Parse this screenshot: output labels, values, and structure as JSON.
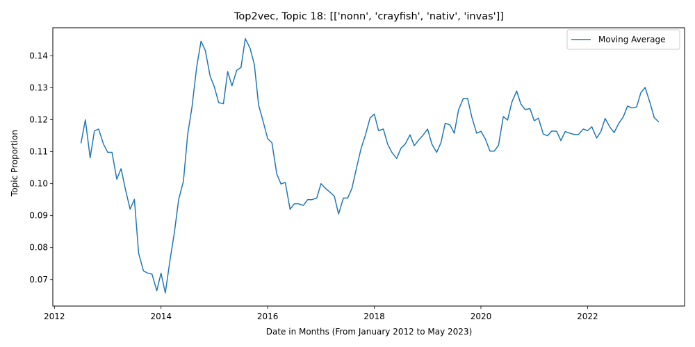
{
  "chart_data": {
    "type": "line",
    "title": "Top2vec, Topic 18: [['nonn', 'crayfish', 'nativ', 'invas']]",
    "xlabel": "Date in Months (From January 2012 to May 2023)",
    "ylabel": "Topic Proportion",
    "xlim": [
      2011.97,
      2023.82
    ],
    "ylim": [
      0.0617,
      0.1488
    ],
    "x_ticks": [
      2012,
      2014,
      2016,
      2018,
      2020,
      2022
    ],
    "y_ticks": [
      0.07,
      0.08,
      0.09,
      0.1,
      0.11,
      0.12,
      0.13,
      0.14
    ],
    "y_tick_labels": [
      "0.07",
      "0.08",
      "0.09",
      "0.10",
      "0.11",
      "0.12",
      "0.13",
      "0.14"
    ],
    "grid": false,
    "legend": {
      "position": "top-right",
      "entries": [
        "Moving Average"
      ]
    },
    "series": [
      {
        "name": "Moving Average",
        "color": "#1f77b4",
        "x": [
          2012.5,
          2012.58,
          2012.67,
          2012.75,
          2012.83,
          2012.92,
          2013.0,
          2013.08,
          2013.17,
          2013.25,
          2013.33,
          2013.42,
          2013.5,
          2013.58,
          2013.67,
          2013.75,
          2013.83,
          2013.92,
          2014.0,
          2014.08,
          2014.17,
          2014.25,
          2014.33,
          2014.42,
          2014.5,
          2014.58,
          2014.67,
          2014.75,
          2014.83,
          2014.92,
          2015.0,
          2015.08,
          2015.17,
          2015.25,
          2015.33,
          2015.42,
          2015.5,
          2015.58,
          2015.67,
          2015.75,
          2015.83,
          2015.92,
          2016.0,
          2016.08,
          2016.17,
          2016.25,
          2016.33,
          2016.42,
          2016.5,
          2016.58,
          2016.67,
          2016.75,
          2016.83,
          2016.92,
          2017.0,
          2017.08,
          2017.17,
          2017.25,
          2017.33,
          2017.42,
          2017.5,
          2017.58,
          2017.67,
          2017.75,
          2017.83,
          2017.92,
          2018.0,
          2018.08,
          2018.17,
          2018.25,
          2018.33,
          2018.42,
          2018.5,
          2018.58,
          2018.67,
          2018.75,
          2018.83,
          2018.92,
          2019.0,
          2019.08,
          2019.17,
          2019.25,
          2019.33,
          2019.42,
          2019.5,
          2019.58,
          2019.67,
          2019.75,
          2019.83,
          2019.92,
          2020.0,
          2020.08,
          2020.17,
          2020.25,
          2020.33,
          2020.42,
          2020.5,
          2020.58,
          2020.67,
          2020.75,
          2020.83,
          2020.92,
          2021.0,
          2021.08,
          2021.17,
          2021.25,
          2021.33,
          2021.42,
          2021.5,
          2021.58,
          2021.67,
          2021.75,
          2021.83,
          2021.92,
          2022.0,
          2022.08,
          2022.17,
          2022.25,
          2022.33,
          2022.42,
          2022.5,
          2022.58,
          2022.67,
          2022.75,
          2022.83,
          2022.92,
          2023.0,
          2023.08,
          2023.17,
          2023.25,
          2023.33
        ],
        "values": [
          0.1128,
          0.12,
          0.1081,
          0.1165,
          0.1171,
          0.1124,
          0.1098,
          0.1098,
          0.1014,
          0.1047,
          0.0984,
          0.092,
          0.0951,
          0.0782,
          0.0727,
          0.072,
          0.0717,
          0.0665,
          0.072,
          0.0658,
          0.0763,
          0.0847,
          0.095,
          0.1008,
          0.1155,
          0.1239,
          0.1367,
          0.1446,
          0.1417,
          0.1337,
          0.1303,
          0.1254,
          0.125,
          0.1351,
          0.1306,
          0.1355,
          0.1364,
          0.1454,
          0.1424,
          0.1373,
          0.1246,
          0.1192,
          0.1141,
          0.1128,
          0.1031,
          0.0999,
          0.1004,
          0.092,
          0.0937,
          0.0937,
          0.0932,
          0.095,
          0.095,
          0.0955,
          0.1,
          0.0986,
          0.0973,
          0.0961,
          0.0905,
          0.0955,
          0.0955,
          0.0985,
          0.1052,
          0.1109,
          0.115,
          0.1205,
          0.1218,
          0.1166,
          0.1171,
          0.1124,
          0.1098,
          0.1079,
          0.1111,
          0.1124,
          0.1153,
          0.1119,
          0.1136,
          0.1153,
          0.1171,
          0.1124,
          0.1098,
          0.1128,
          0.1189,
          0.1184,
          0.1158,
          0.1231,
          0.1267,
          0.1267,
          0.1208,
          0.1158,
          0.1164,
          0.1141,
          0.1102,
          0.1102,
          0.112,
          0.121,
          0.1199,
          0.1255,
          0.129,
          0.1249,
          0.1232,
          0.1235,
          0.1197,
          0.1205,
          0.1155,
          0.115,
          0.1165,
          0.1164,
          0.1135,
          0.1163,
          0.1158,
          0.1154,
          0.1154,
          0.1171,
          0.1166,
          0.1178,
          0.1143,
          0.1163,
          0.1204,
          0.1177,
          0.116,
          0.1187,
          0.1209,
          0.1243,
          0.1237,
          0.124,
          0.1285,
          0.1301,
          0.1254,
          0.1207,
          0.1194
        ]
      }
    ]
  }
}
